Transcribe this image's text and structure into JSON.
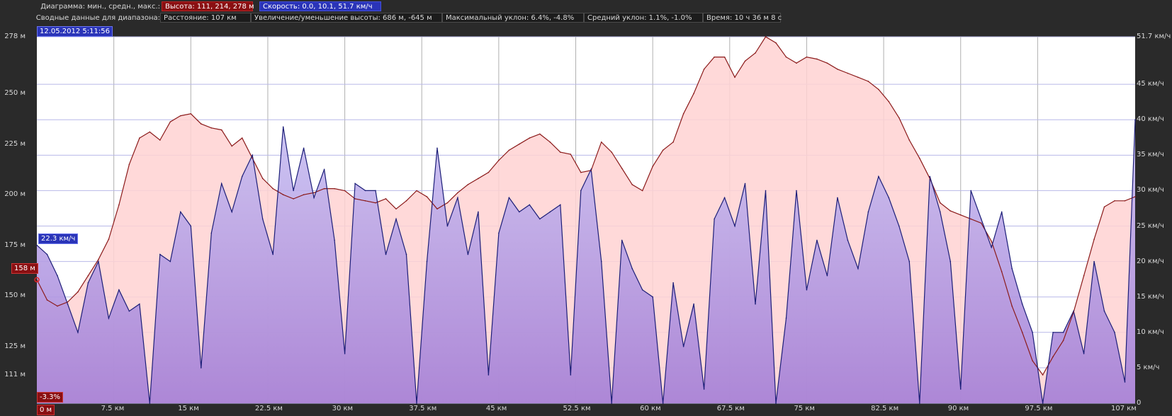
{
  "header": {
    "row1_label": "Диаграмма: мин., средн., макс.:",
    "altitude_stats": "Высота: 111, 214, 278 м",
    "speed_stats": "Скорость: 0.0, 10.1, 51.7 км/ч",
    "row2_label": "Сводные данные для диапазона:",
    "distance": "Расстояние: 107 км",
    "elevation": "Увеличение/уменьшение высоты: 686 м, -645 м",
    "max_grade": "Максимальный уклон: 6.4%, -4.8%",
    "avg_grade": "Средний уклон: 1.1%, -1.0%",
    "time": "Время: 10 ч 36 м 8 с"
  },
  "markers": {
    "timestamp": "12.05.2012 5:11:56",
    "speed_at_cursor": "22.3 км/ч",
    "altitude_at_cursor": "158 м",
    "grade_at_cursor": "-3.3%",
    "start_distance": "0 м"
  },
  "colors": {
    "altitude_line": "#8b1a1a",
    "altitude_fill": "#ffd2d2",
    "speed_line": "#1c1e78",
    "speed_fill_top": "#c8c0f2",
    "speed_fill_bottom": "#a47ed6",
    "plot_bg": "#ffffff",
    "frame_bg": "#2a2a2a",
    "gridline": "#b8b8e8"
  },
  "chart_data": {
    "type": "area",
    "xlabel": "",
    "xlim": [
      0,
      107
    ],
    "y_left_ticks": [
      "278 м",
      "250 м",
      "225 м",
      "200 м",
      "175 м",
      "150 м",
      "125 м",
      "111 м"
    ],
    "y_left_values": [
      278,
      250,
      225,
      200,
      175,
      150,
      125,
      111
    ],
    "ylim_left": [
      97,
      278
    ],
    "y_right_ticks": [
      "51.7 км/ч",
      "45 км/ч",
      "40 км/ч",
      "35 км/ч",
      "30 км/ч",
      "25 км/ч",
      "20 км/ч",
      "15 км/ч",
      "10 км/ч",
      "5 км/ч",
      "0"
    ],
    "y_right_values": [
      51.7,
      45,
      40,
      35,
      30,
      25,
      20,
      15,
      10,
      5,
      0
    ],
    "ylim_right": [
      0,
      51.7
    ],
    "x_ticks": [
      "0 м",
      "7.5 км",
      "15 км",
      "22.5 км",
      "30 км",
      "37.5 км",
      "45 км",
      "52.5 км",
      "60 км",
      "67.5 км",
      "75 км",
      "82.5 км",
      "90 км",
      "97.5 км",
      "107 км"
    ],
    "x_tick_values": [
      0,
      7.5,
      15,
      22.5,
      30,
      37.5,
      45,
      52.5,
      60,
      67.5,
      75,
      82.5,
      90,
      97.5,
      107
    ],
    "series": [
      {
        "name": "Высота",
        "axis": "left",
        "x": [
          0,
          1,
          2,
          3,
          4,
          5,
          6,
          7,
          8,
          9,
          10,
          11,
          12,
          13,
          14,
          15,
          16,
          17,
          18,
          19,
          20,
          21,
          22,
          23,
          24,
          25,
          26,
          27,
          28,
          29,
          30,
          31,
          32,
          33,
          34,
          35,
          36,
          37,
          38,
          39,
          40,
          41,
          42,
          43,
          44,
          45,
          46,
          47,
          48,
          49,
          50,
          51,
          52,
          53,
          54,
          55,
          56,
          57,
          58,
          59,
          60,
          61,
          62,
          63,
          64,
          65,
          66,
          67,
          68,
          69,
          70,
          71,
          72,
          73,
          74,
          75,
          76,
          77,
          78,
          79,
          80,
          81,
          82,
          83,
          84,
          85,
          86,
          87,
          88,
          89,
          90,
          91,
          92,
          93,
          94,
          95,
          96,
          97,
          98,
          99,
          100,
          101,
          102,
          103,
          104,
          105,
          106,
          107
        ],
        "values": [
          158,
          148,
          145,
          147,
          152,
          160,
          168,
          178,
          195,
          215,
          228,
          231,
          227,
          236,
          239,
          240,
          235,
          233,
          232,
          224,
          228,
          218,
          208,
          203,
          200,
          198,
          200,
          201,
          203,
          203,
          202,
          198,
          197,
          196,
          198,
          193,
          197,
          202,
          199,
          193,
          196,
          201,
          205,
          208,
          211,
          217,
          222,
          225,
          228,
          230,
          226,
          221,
          220,
          211,
          212,
          226,
          221,
          213,
          205,
          202,
          214,
          222,
          226,
          240,
          250,
          262,
          268,
          268,
          258,
          266,
          270,
          278,
          275,
          268,
          265,
          268,
          267,
          265,
          262,
          260,
          258,
          256,
          252,
          246,
          238,
          227,
          218,
          208,
          196,
          192,
          190,
          188,
          186,
          177,
          162,
          145,
          132,
          118,
          111,
          120,
          128,
          142,
          160,
          178,
          194,
          197,
          197,
          199
        ],
        "values_note": ""
      },
      {
        "name": "Скорость",
        "axis": "right",
        "x": [
          0,
          1,
          2,
          3,
          4,
          5,
          6,
          7,
          8,
          9,
          10,
          11,
          12,
          13,
          14,
          15,
          16,
          17,
          18,
          19,
          20,
          21,
          22,
          23,
          24,
          25,
          26,
          27,
          28,
          29,
          30,
          31,
          32,
          33,
          34,
          35,
          36,
          37,
          38,
          39,
          40,
          41,
          42,
          43,
          44,
          45,
          46,
          47,
          48,
          49,
          50,
          51,
          52,
          53,
          54,
          55,
          56,
          57,
          58,
          59,
          60,
          61,
          62,
          63,
          64,
          65,
          66,
          67,
          68,
          69,
          70,
          71,
          72,
          73,
          74,
          75,
          76,
          77,
          78,
          79,
          80,
          81,
          82,
          83,
          84,
          85,
          86,
          87,
          88,
          89,
          90,
          91,
          92,
          93,
          94,
          95,
          96,
          97,
          98,
          99,
          100,
          101,
          102,
          103,
          104,
          105,
          106,
          107
        ],
        "values": [
          22.3,
          21,
          18,
          14,
          10,
          17,
          20,
          12,
          16,
          13,
          14,
          0,
          21,
          20,
          27,
          25,
          5,
          24,
          31,
          27,
          32,
          35,
          26,
          21,
          39,
          30,
          36,
          29,
          33,
          23,
          7,
          31,
          30,
          30,
          21,
          26,
          21,
          0,
          20,
          36,
          25,
          29,
          21,
          27,
          4,
          24,
          29,
          27,
          28,
          26,
          27,
          28,
          4,
          30,
          33,
          20,
          0,
          23,
          19,
          16,
          15,
          0,
          17,
          8,
          14,
          2,
          26,
          29,
          25,
          31,
          14,
          30,
          0,
          12,
          30,
          16,
          23,
          18,
          29,
          23,
          19,
          27,
          32,
          29,
          25,
          20,
          0,
          32,
          27,
          20,
          2,
          30,
          26,
          22,
          27,
          19,
          14,
          10,
          0,
          10,
          10,
          13,
          7,
          20,
          13,
          10,
          3,
          40
        ],
        "values_note": ""
      }
    ]
  }
}
